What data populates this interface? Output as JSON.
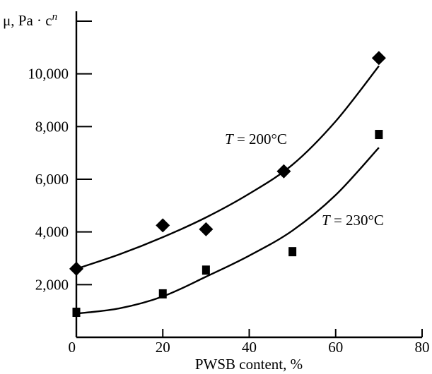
{
  "chart_data": {
    "type": "scatter",
    "xlabel": "PWSB content, %",
    "ylabel_parts": {
      "main": "μ, Pa · c",
      "sup": "n"
    },
    "xlim": [
      0,
      80
    ],
    "ylim": [
      0,
      12000
    ],
    "x_ticks": [
      0,
      20,
      40,
      60,
      80
    ],
    "x_tick_labels": [
      "0",
      "20",
      "40",
      "60",
      "80"
    ],
    "y_ticks": [
      2000,
      4000,
      6000,
      8000,
      10000
    ],
    "y_tick_labels": [
      "2,000",
      "4,000",
      "6,000",
      "8,000",
      "10,000"
    ],
    "grid": false,
    "series": [
      {
        "name": "T = 200°C",
        "label_var": "T",
        "label_rest": " = 200°C",
        "marker": "diamond",
        "points": [
          [
            0,
            2600
          ],
          [
            20,
            4250
          ],
          [
            30,
            4100
          ],
          [
            48,
            6300
          ],
          [
            70,
            10600
          ]
        ],
        "fit": [
          [
            0,
            2600
          ],
          [
            10,
            3150
          ],
          [
            20,
            3800
          ],
          [
            30,
            4550
          ],
          [
            40,
            5450
          ],
          [
            50,
            6550
          ],
          [
            60,
            8200
          ],
          [
            70,
            10300
          ]
        ]
      },
      {
        "name": "T = 230°C",
        "label_var": "T",
        "label_rest": " = 230°C",
        "marker": "square",
        "points": [
          [
            0,
            950
          ],
          [
            20,
            1650
          ],
          [
            30,
            2550
          ],
          [
            50,
            3250
          ],
          [
            70,
            7700
          ]
        ],
        "fit": [
          [
            0,
            900
          ],
          [
            10,
            1100
          ],
          [
            20,
            1550
          ],
          [
            30,
            2300
          ],
          [
            40,
            3100
          ],
          [
            50,
            4050
          ],
          [
            60,
            5400
          ],
          [
            70,
            7200
          ]
        ]
      }
    ]
  }
}
